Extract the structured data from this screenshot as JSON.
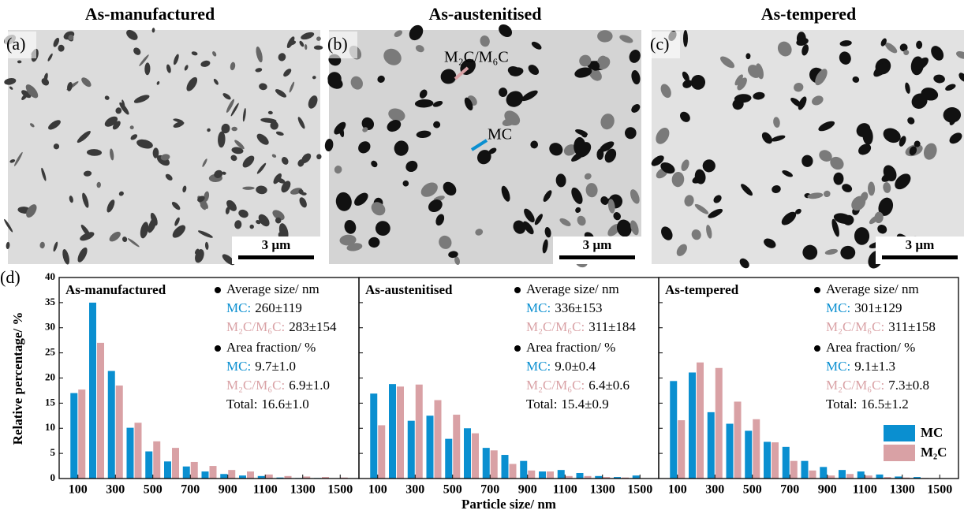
{
  "micrographs": [
    {
      "label": "(a)",
      "title": "As-manufactured",
      "scale_bar": "3 µm"
    },
    {
      "label": "(b)",
      "title": "As-austenitised",
      "scale_bar": "3 µm",
      "annotations": [
        "M₂C/M₆C",
        "MC"
      ]
    },
    {
      "label": "(c)",
      "title": "As-tempered",
      "scale_bar": "3 µm"
    }
  ],
  "figure": {
    "panel_label": "(d)",
    "x_label": "Particle size/ nm",
    "y_label": "Relative percentage/ %",
    "legend": {
      "position": "lower right",
      "items": [
        {
          "name": "MC",
          "color": "#0a8fd0"
        },
        {
          "name": "M₂C",
          "color": "#d9a1a5"
        }
      ]
    }
  },
  "chart_data": [
    {
      "type": "bar",
      "title": "As-manufactured",
      "x": [
        100,
        200,
        300,
        400,
        500,
        600,
        700,
        800,
        900,
        1000,
        1100,
        1200,
        1300,
        1400,
        1500
      ],
      "series": [
        {
          "values": [
            17,
            35,
            21.4,
            10.1,
            5.4,
            3.4,
            2.4,
            1.4,
            0.9,
            0.6,
            0.5,
            0.2,
            0.1,
            0.1,
            0.05
          ]
        },
        {
          "values": [
            17.7,
            27,
            18.5,
            11.1,
            7.4,
            6.1,
            3.3,
            2.5,
            1.7,
            1.4,
            0.8,
            0.5,
            0.4,
            0.3,
            0.2
          ]
        }
      ],
      "xlim": [
        0,
        1600
      ],
      "xticks": [
        100,
        300,
        500,
        700,
        900,
        1100,
        1300,
        1500
      ],
      "ylim": [
        0,
        40
      ],
      "yticks": [
        0,
        5,
        10,
        15,
        20,
        25,
        30,
        35,
        40
      ],
      "stats": {
        "size_heading": "Average size/ nm",
        "size": [
          {
            "label": "MC:",
            "value": "260±119"
          },
          {
            "label": "M₂C/M₆C:",
            "value": "283±154"
          }
        ],
        "area_heading": "Area fraction/ %",
        "area": [
          {
            "label": "MC:",
            "value": "9.7±1.0"
          },
          {
            "label": "M₂C/M₆C:",
            "value": "6.9±1.0"
          },
          {
            "label": "Total:",
            "value": "16.6±1.0"
          }
        ]
      }
    },
    {
      "type": "bar",
      "title": "As-austenitised",
      "x": [
        100,
        200,
        300,
        400,
        500,
        600,
        700,
        800,
        900,
        1000,
        1100,
        1200,
        1300,
        1400,
        1500
      ],
      "series": [
        {
          "values": [
            16.9,
            18.8,
            11.5,
            12.5,
            7.9,
            10,
            6.1,
            4.7,
            3.5,
            1.4,
            1.7,
            1.1,
            0.5,
            0.3,
            0.6
          ]
        },
        {
          "values": [
            10.6,
            18.3,
            18.7,
            15.6,
            12.7,
            9,
            5.6,
            2.9,
            1.6,
            1.4,
            0.5,
            0.5,
            0.3,
            0.2,
            0
          ]
        }
      ],
      "xlim": [
        0,
        1600
      ],
      "xticks": [
        100,
        300,
        500,
        700,
        900,
        1100,
        1300,
        1500
      ],
      "ylim": [
        0,
        40
      ],
      "yticks": [
        0,
        5,
        10,
        15,
        20,
        25,
        30,
        35,
        40
      ],
      "stats": {
        "size_heading": "Average size/ nm",
        "size": [
          {
            "label": "MC:",
            "value": "336±153"
          },
          {
            "label": "M₂C/M₆C:",
            "value": "311±184"
          }
        ],
        "area_heading": "Area fraction/ %",
        "area": [
          {
            "label": "MC:",
            "value": "9.0±0.4"
          },
          {
            "label": "M₂C/M₆C:",
            "value": "6.4±0.6"
          },
          {
            "label": "Total:",
            "value": "15.4±0.9"
          }
        ]
      }
    },
    {
      "type": "bar",
      "title": "As-tempered",
      "x": [
        100,
        200,
        300,
        400,
        500,
        600,
        700,
        800,
        900,
        1000,
        1100,
        1200,
        1300,
        1400,
        1500
      ],
      "series": [
        {
          "values": [
            19.4,
            21.1,
            13.2,
            10.9,
            9.5,
            7.3,
            6.3,
            3.5,
            2.3,
            1.7,
            1.4,
            0.8,
            0.4,
            0.3,
            0
          ]
        },
        {
          "values": [
            11.6,
            23.1,
            22,
            15.3,
            11.8,
            7.2,
            3.5,
            1.6,
            0.6,
            0.9,
            0.6,
            0.3,
            0.2,
            0.1,
            0
          ]
        }
      ],
      "xlim": [
        0,
        1600
      ],
      "xticks": [
        100,
        300,
        500,
        700,
        900,
        1100,
        1300,
        1500
      ],
      "ylim": [
        0,
        40
      ],
      "yticks": [
        0,
        5,
        10,
        15,
        20,
        25,
        30,
        35,
        40
      ],
      "stats": {
        "size_heading": "Average size/ nm",
        "size": [
          {
            "label": "MC:",
            "value": "301±129"
          },
          {
            "label": "M₂C/M₆C:",
            "value": "311±158"
          }
        ],
        "area_heading": "Area fraction/ %",
        "area": [
          {
            "label": "MC:",
            "value": "9.1±1.3"
          },
          {
            "label": "M₂C/M₆C:",
            "value": "7.3±0.8"
          },
          {
            "label": "Total:",
            "value": "16.5±1.2"
          }
        ]
      }
    }
  ]
}
